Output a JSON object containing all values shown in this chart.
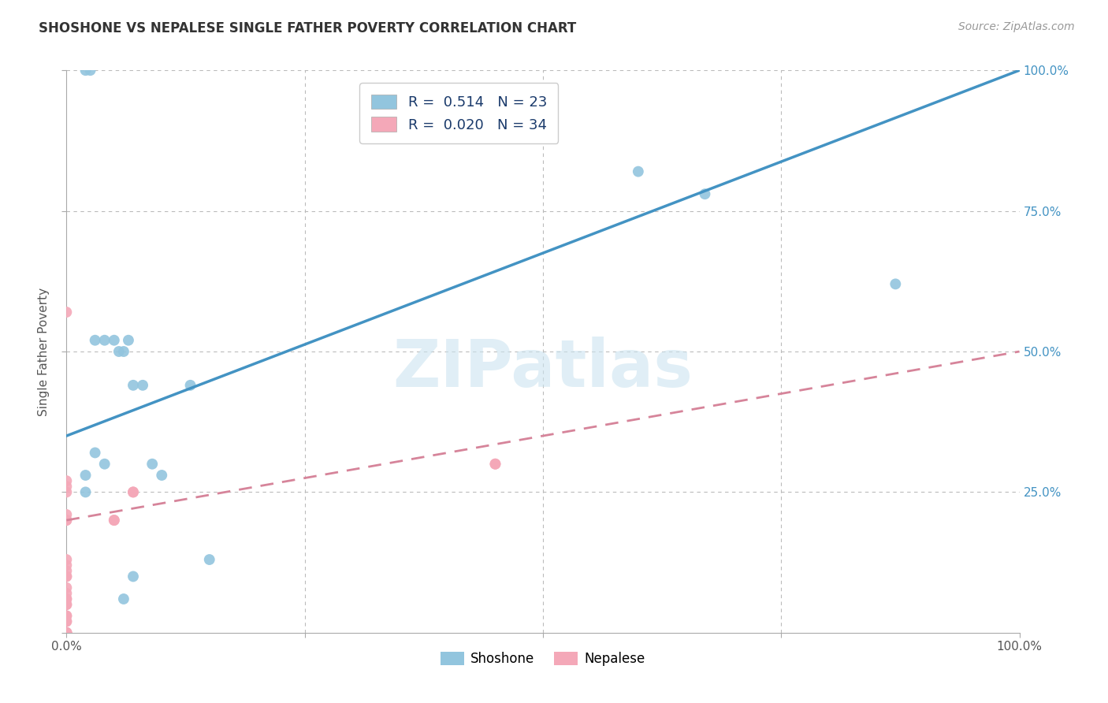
{
  "title": "SHOSHONE VS NEPALESE SINGLE FATHER POVERTY CORRELATION CHART",
  "source": "Source: ZipAtlas.com",
  "ylabel": "Single Father Poverty",
  "watermark": "ZIPatlas",
  "shoshone_R": 0.514,
  "shoshone_N": 23,
  "nepalese_R": 0.02,
  "nepalese_N": 34,
  "shoshone_color": "#92c5de",
  "nepalese_color": "#f4a8b8",
  "shoshone_line_color": "#4393c3",
  "nepalese_line_color": "#d6849a",
  "shoshone_x": [
    0.02,
    0.025,
    0.03,
    0.04,
    0.05,
    0.055,
    0.06,
    0.065,
    0.07,
    0.08,
    0.09,
    0.1,
    0.13,
    0.04,
    0.06,
    0.07,
    0.15,
    0.02,
    0.02,
    0.03,
    0.6,
    0.67,
    0.87
  ],
  "shoshone_y": [
    1.0,
    1.0,
    0.52,
    0.52,
    0.52,
    0.5,
    0.5,
    0.52,
    0.44,
    0.44,
    0.3,
    0.28,
    0.44,
    0.3,
    0.06,
    0.1,
    0.13,
    0.28,
    0.25,
    0.32,
    0.82,
    0.78,
    0.62
  ],
  "nepalese_x": [
    0.0,
    0.0,
    0.0,
    0.0,
    0.0,
    0.0,
    0.0,
    0.0,
    0.0,
    0.0,
    0.0,
    0.0,
    0.0,
    0.0,
    0.0,
    0.0,
    0.0,
    0.0,
    0.0,
    0.0,
    0.0,
    0.0,
    0.0,
    0.0,
    0.0,
    0.0,
    0.0,
    0.0,
    0.05,
    0.05,
    0.07,
    0.07,
    0.45,
    0.45
  ],
  "nepalese_y": [
    0.0,
    0.0,
    0.0,
    0.0,
    0.0,
    0.0,
    0.02,
    0.02,
    0.03,
    0.03,
    0.05,
    0.05,
    0.06,
    0.06,
    0.07,
    0.08,
    0.1,
    0.1,
    0.11,
    0.12,
    0.13,
    0.2,
    0.2,
    0.21,
    0.25,
    0.26,
    0.27,
    0.57,
    0.2,
    0.2,
    0.25,
    0.25,
    0.3,
    0.3
  ],
  "xlim": [
    0.0,
    1.0
  ],
  "ylim": [
    0.0,
    1.0
  ],
  "background_color": "#ffffff",
  "grid_color": "#bbbbbb",
  "shoshone_line_intercept": 0.35,
  "shoshone_line_slope": 0.65,
  "nepalese_line_intercept": 0.2,
  "nepalese_line_slope": 0.3
}
